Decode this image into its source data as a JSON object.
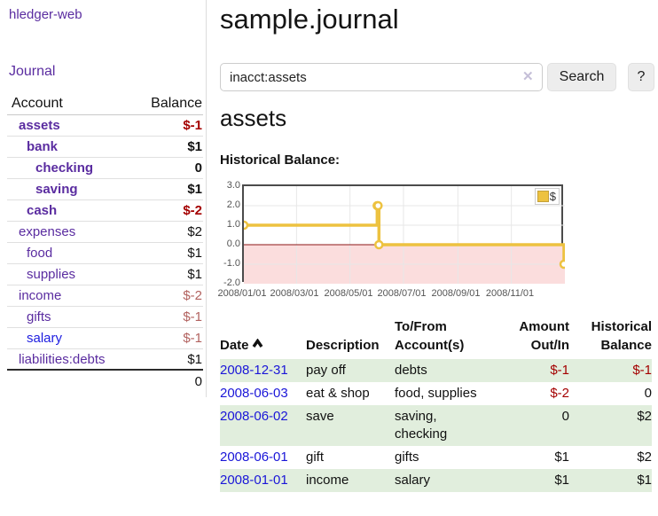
{
  "sidebar": {
    "app_title": "hledger-web",
    "nav": {
      "journal_label": "Journal"
    },
    "accounts": {
      "headers": {
        "account": "Account",
        "balance": "Balance"
      },
      "rows": [
        {
          "name": "assets",
          "balance": "$-1",
          "depth": 0,
          "in_query": true,
          "balance_tone": "negative-strong"
        },
        {
          "name": "bank",
          "balance": "$1",
          "depth": 1,
          "in_query": true,
          "balance_tone": "normal"
        },
        {
          "name": "checking",
          "balance": "0",
          "depth": 2,
          "in_query": true,
          "balance_tone": "normal"
        },
        {
          "name": "saving",
          "balance": "$1",
          "depth": 2,
          "in_query": true,
          "balance_tone": "normal"
        },
        {
          "name": "cash",
          "balance": "$-2",
          "depth": 1,
          "in_query": true,
          "balance_tone": "negative-strong"
        },
        {
          "name": "expenses",
          "balance": "$2",
          "depth": 0,
          "in_query": false,
          "balance_tone": "normal"
        },
        {
          "name": "food",
          "balance": "$1",
          "depth": 1,
          "in_query": false,
          "balance_tone": "normal"
        },
        {
          "name": "supplies",
          "balance": "$1",
          "depth": 1,
          "in_query": false,
          "balance_tone": "normal"
        },
        {
          "name": "income",
          "balance": "$-2",
          "depth": 0,
          "in_query": false,
          "balance_tone": "negative-soft"
        },
        {
          "name": "gifts",
          "balance": "$-1",
          "depth": 1,
          "in_query": false,
          "balance_tone": "negative-soft"
        },
        {
          "name": "salary",
          "balance": "$-1",
          "depth": 1,
          "in_query": false,
          "balance_tone": "negative-soft"
        },
        {
          "name": "liabilities:debts",
          "balance": "$1",
          "depth": 0,
          "in_query": false,
          "balance_tone": "normal"
        }
      ],
      "total": "0"
    }
  },
  "main": {
    "title": "sample.journal",
    "search": {
      "value": "inacct:assets",
      "clear_icon": "✕",
      "search_button_label": "Search",
      "help_button_label": "?"
    },
    "account_heading": "assets",
    "chart_label": "Historical Balance:",
    "register": {
      "headers": {
        "date": "Date",
        "description": "Description",
        "accounts": "To/From Account(s)",
        "amount": "Amount Out/In",
        "balance": "Historical Balance"
      },
      "sort": "ascending",
      "rows": [
        {
          "date": "2008-12-31",
          "description": "pay off",
          "accounts": "debts",
          "amount": "$-1",
          "balance": "$-1",
          "amount_negative": true,
          "balance_negative": true,
          "striped": true
        },
        {
          "date": "2008-06-03",
          "description": "eat & shop",
          "accounts": "food, supplies",
          "amount": "$-2",
          "balance": "0",
          "amount_negative": true,
          "balance_negative": false,
          "striped": false
        },
        {
          "date": "2008-06-02",
          "description": "save",
          "accounts": "saving, checking",
          "amount": "0",
          "balance": "$2",
          "amount_negative": false,
          "balance_negative": false,
          "striped": true
        },
        {
          "date": "2008-06-01",
          "description": "gift",
          "accounts": "gifts",
          "amount": "$1",
          "balance": "$2",
          "amount_negative": false,
          "balance_negative": false,
          "striped": false
        },
        {
          "date": "2008-01-01",
          "description": "income",
          "accounts": "salary",
          "amount": "$1",
          "balance": "$1",
          "amount_negative": false,
          "balance_negative": false,
          "striped": true
        }
      ]
    }
  },
  "chart_data": {
    "type": "line",
    "title": "Historical Balance",
    "step": true,
    "legend": {
      "label": "$",
      "position": "top-right"
    },
    "series": [
      {
        "name": "$",
        "color": "#edc240",
        "points": [
          {
            "date": "2008-01-01",
            "day": 0,
            "value": 1
          },
          {
            "date": "2008-06-01",
            "day": 152,
            "value": 2
          },
          {
            "date": "2008-06-02",
            "day": 153,
            "value": 2
          },
          {
            "date": "2008-06-03",
            "day": 154,
            "value": 0
          },
          {
            "date": "2008-12-31",
            "day": 365,
            "value": -1
          }
        ]
      }
    ],
    "x_ticks": [
      "2008/01/01",
      "2008/03/01",
      "2008/05/01",
      "2008/07/01",
      "2008/09/01",
      "2008/11/01"
    ],
    "x_tick_days": [
      0,
      60,
      121,
      182,
      244,
      305
    ],
    "x_range_days": 366,
    "y_ticks": [
      "3.0",
      "2.0",
      "1.0",
      "0.0",
      "-1.0",
      "-2.0"
    ],
    "y_gridlines": [
      2,
      1,
      -1
    ],
    "ylim": [
      -2,
      3
    ],
    "grid": true,
    "negative_region_color": "#fbdddd",
    "zero_line_color": "#8c1717"
  }
}
